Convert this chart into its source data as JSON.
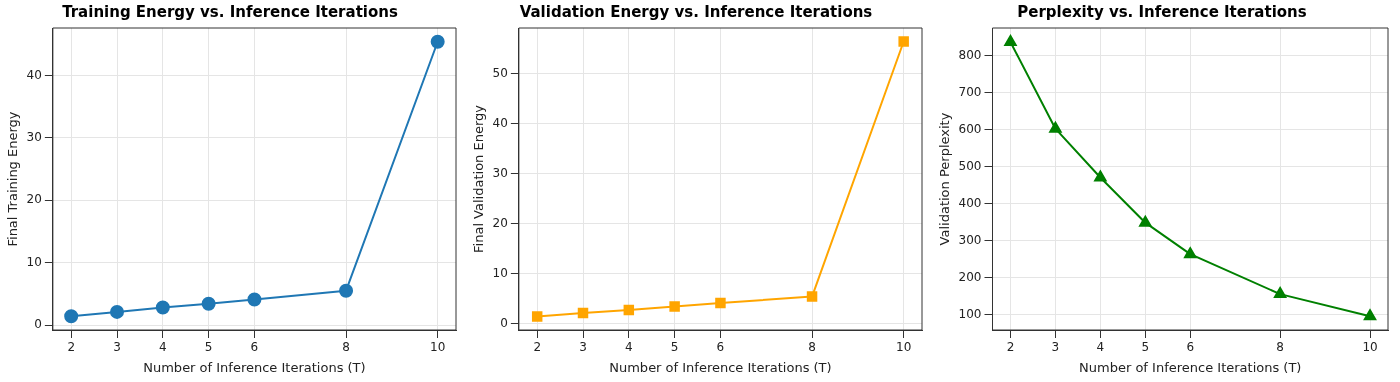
{
  "chart_data": [
    {
      "type": "line",
      "title": "Training Energy vs. Inference Iterations",
      "xlabel": "Number of Inference Iterations (T)",
      "ylabel": "Final Training Energy",
      "x": [
        2,
        3,
        4,
        5,
        6,
        8,
        10
      ],
      "series": [
        {
          "color": "#1f77b4",
          "values": [
            1.4,
            2.1,
            2.8,
            3.4,
            4.1,
            5.5,
            45.4
          ]
        }
      ],
      "xlim": [
        1.6,
        10.4
      ],
      "xticks": [
        2,
        3,
        4,
        5,
        6,
        8,
        10
      ],
      "ylim": [
        -0.8,
        47.6
      ],
      "yticks": [
        0,
        10,
        20,
        30,
        40
      ],
      "grid": true,
      "legend": false,
      "marker": "circle",
      "line_style": "solid"
    },
    {
      "type": "line",
      "title": "Validation Energy vs. Inference Iterations",
      "xlabel": "Number of Inference Iterations (T)",
      "ylabel": "Final Validation Energy",
      "x": [
        2,
        3,
        4,
        5,
        6,
        8,
        10
      ],
      "series": [
        {
          "color": "#ffa500",
          "values": [
            1.4,
            2.1,
            2.7,
            3.4,
            4.1,
            5.4,
            56.5
          ]
        }
      ],
      "xlim": [
        1.6,
        10.4
      ],
      "xticks": [
        2,
        3,
        4,
        5,
        6,
        8,
        10
      ],
      "ylim": [
        -1.3,
        59.2
      ],
      "yticks": [
        0,
        10,
        20,
        30,
        40,
        50
      ],
      "grid": true,
      "legend": false,
      "marker": "square",
      "line_style": "solid"
    },
    {
      "type": "line",
      "title": "Perplexity vs. Inference Iterations",
      "xlabel": "Number of Inference Iterations (T)",
      "ylabel": "Validation Perplexity",
      "x": [
        2,
        3,
        4,
        5,
        6,
        8,
        10
      ],
      "series": [
        {
          "color": "#008000",
          "values": [
            836,
            602,
            470,
            348,
            263,
            155,
            95
          ]
        }
      ],
      "xlim": [
        1.6,
        10.4
      ],
      "xticks": [
        2,
        3,
        4,
        5,
        6,
        8,
        10
      ],
      "ylim": [
        58,
        874
      ],
      "yticks": [
        100,
        200,
        300,
        400,
        500,
        600,
        700,
        800
      ],
      "grid": true,
      "legend": false,
      "marker": "triangle",
      "line_style": "solid"
    }
  ]
}
